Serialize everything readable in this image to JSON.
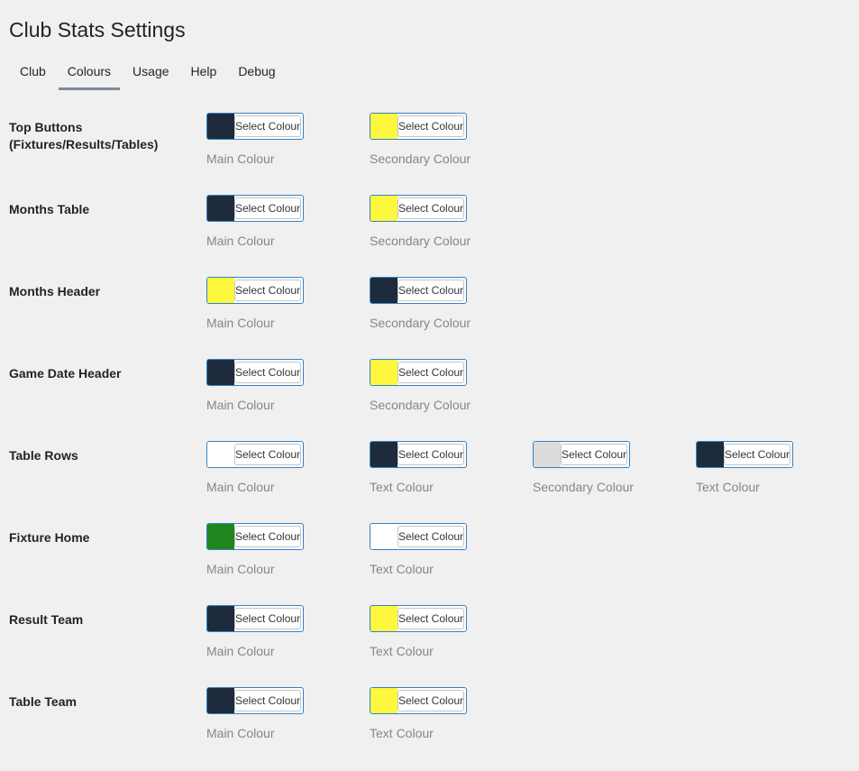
{
  "page": {
    "title": "Club Stats Settings",
    "background": "#f0f0f1"
  },
  "tabs": [
    {
      "label": "Club",
      "active": false
    },
    {
      "label": "Colours",
      "active": true
    },
    {
      "label": "Usage",
      "active": false
    },
    {
      "label": "Help",
      "active": false
    },
    {
      "label": "Debug",
      "active": false
    }
  ],
  "picker_button_label": "Select Colour",
  "colors": {
    "dark_navy": "#1d2b3c",
    "yellow": "#fdf83d",
    "green": "#1f861f",
    "light_grey": "#dcdcdc",
    "white": "#ffffff",
    "accent_border": "#3582c4",
    "active_tab_underline": "#7e8993"
  },
  "rows": [
    {
      "label": "Top Buttons (Fixtures/Results/Tables)",
      "pickers": [
        {
          "swatch": "#1d2b3c",
          "description": "Main Colour"
        },
        {
          "swatch": "#fdf83d",
          "description": "Secondary Colour"
        }
      ]
    },
    {
      "label": "Months Table",
      "pickers": [
        {
          "swatch": "#1d2b3c",
          "description": "Main Colour"
        },
        {
          "swatch": "#fdf83d",
          "description": "Secondary Colour"
        }
      ]
    },
    {
      "label": "Months Header",
      "pickers": [
        {
          "swatch": "#fdf83d",
          "description": "Main Colour"
        },
        {
          "swatch": "#1d2b3c",
          "description": "Secondary Colour"
        }
      ]
    },
    {
      "label": "Game Date Header",
      "pickers": [
        {
          "swatch": "#1d2b3c",
          "description": "Main Colour"
        },
        {
          "swatch": "#fdf83d",
          "description": "Secondary Colour"
        }
      ]
    },
    {
      "label": "Table Rows",
      "pickers": [
        {
          "swatch": "#ffffff",
          "description": "Main Colour"
        },
        {
          "swatch": "#1d2b3c",
          "description": "Text Colour"
        },
        {
          "swatch": "#dcdcdc",
          "description": "Secondary Colour"
        },
        {
          "swatch": "#1d2b3c",
          "description": "Text Colour"
        }
      ]
    },
    {
      "label": "Fixture Home",
      "pickers": [
        {
          "swatch": "#1f861f",
          "description": "Main Colour"
        },
        {
          "swatch": "#ffffff",
          "description": "Text Colour"
        }
      ]
    },
    {
      "label": "Result Team",
      "pickers": [
        {
          "swatch": "#1d2b3c",
          "description": "Main Colour"
        },
        {
          "swatch": "#fdf83d",
          "description": "Text Colour"
        }
      ]
    },
    {
      "label": "Table Team",
      "pickers": [
        {
          "swatch": "#1d2b3c",
          "description": "Main Colour"
        },
        {
          "swatch": "#fdf83d",
          "description": "Text Colour"
        }
      ]
    }
  ]
}
